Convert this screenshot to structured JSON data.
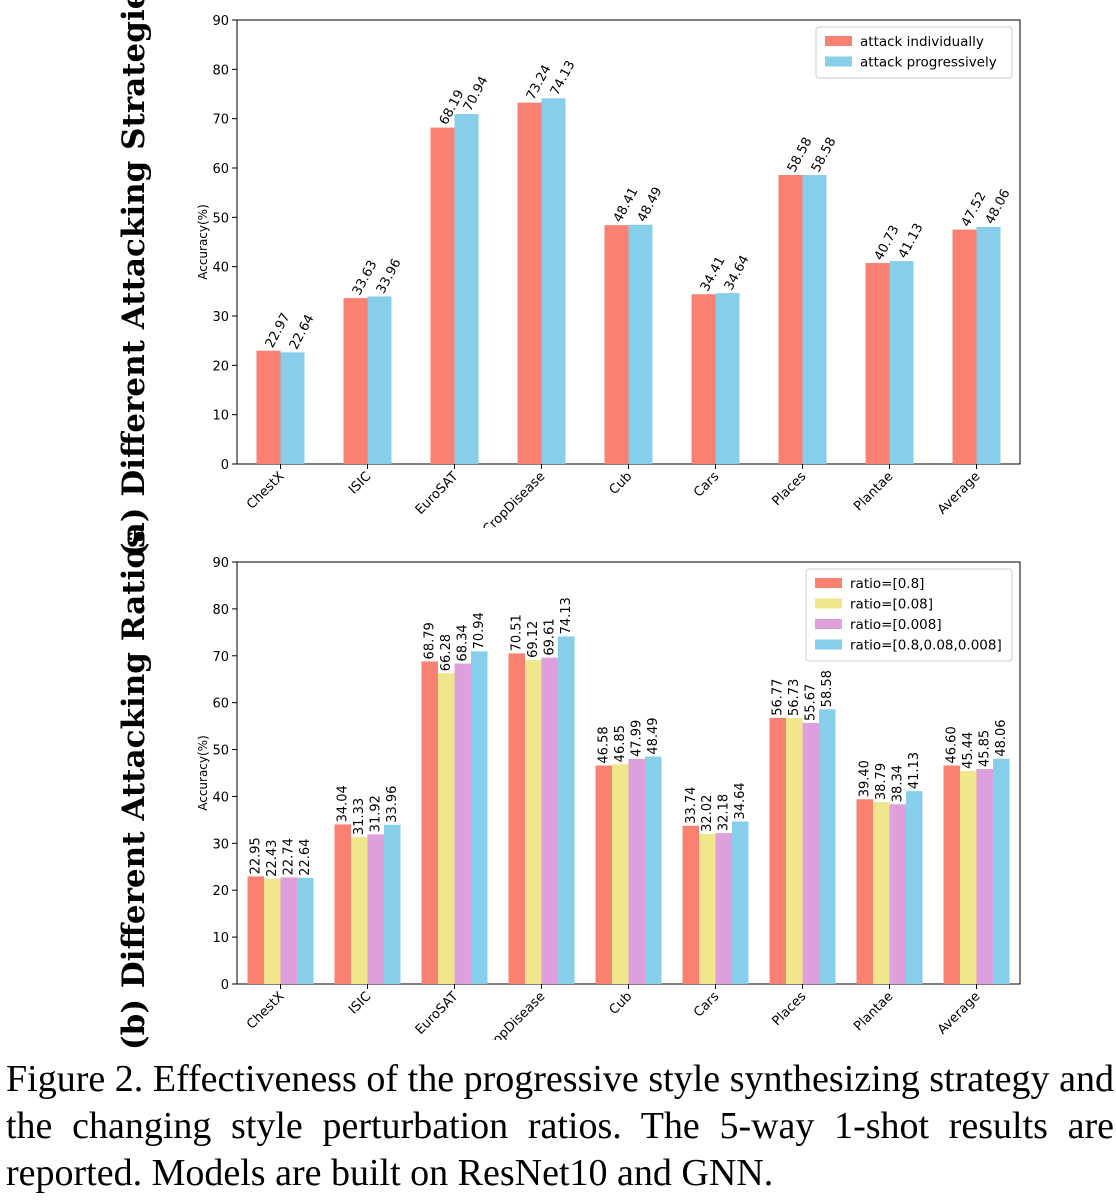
{
  "chart_data": [
    {
      "type": "bar",
      "panel_label": "(a) Different Attacking Strategies",
      "ylabel": "Accuracy(%)",
      "xlabel": "",
      "ylim": [
        0,
        90
      ],
      "yticks": [
        0,
        10,
        20,
        30,
        40,
        50,
        60,
        70,
        80,
        90
      ],
      "grid": false,
      "legend_position": "top-right",
      "categories": [
        "ChestX",
        "ISIC",
        "EuroSAT",
        "CropDisease",
        "Cub",
        "Cars",
        "Places",
        "Plantae",
        "Average"
      ],
      "series": [
        {
          "name": "attack individually",
          "color": "#fa8072",
          "values": [
            22.97,
            33.63,
            68.19,
            73.24,
            48.41,
            34.41,
            58.58,
            40.73,
            47.52
          ]
        },
        {
          "name": "attack progressively",
          "color": "#87ceeb",
          "values": [
            22.64,
            33.96,
            70.94,
            74.13,
            48.49,
            34.64,
            58.58,
            41.13,
            48.06
          ]
        }
      ]
    },
    {
      "type": "bar",
      "panel_label": "(b) Different Attacking Ratios",
      "ylabel": "Accuracy(%)",
      "xlabel": "",
      "ylim": [
        0,
        90
      ],
      "yticks": [
        0,
        10,
        20,
        30,
        40,
        50,
        60,
        70,
        80,
        90
      ],
      "grid": false,
      "legend_position": "top-right",
      "categories": [
        "ChestX",
        "ISIC",
        "EuroSAT",
        "CropDisease",
        "Cub",
        "Cars",
        "Places",
        "Plantae",
        "Average"
      ],
      "series": [
        {
          "name": "ratio=[0.8]",
          "color": "#fa8072",
          "values": [
            22.95,
            34.04,
            68.79,
            70.51,
            46.58,
            33.74,
            56.77,
            39.4,
            46.6
          ]
        },
        {
          "name": "ratio=[0.08]",
          "color": "#f0e68c",
          "values": [
            22.43,
            31.33,
            66.28,
            69.12,
            46.85,
            32.02,
            56.73,
            38.79,
            45.44
          ]
        },
        {
          "name": "ratio=[0.008]",
          "color": "#dda0dd",
          "values": [
            22.74,
            31.92,
            68.34,
            69.61,
            47.99,
            32.18,
            55.67,
            38.34,
            45.85
          ]
        },
        {
          "name": "ratio=[0.8,0.08,0.008]",
          "color": "#87ceeb",
          "values": [
            22.64,
            33.96,
            70.94,
            74.13,
            48.49,
            34.64,
            58.58,
            41.13,
            48.06
          ]
        }
      ]
    }
  ],
  "caption": "Figure 2. Effectiveness of the progressive style synthesizing strategy and the changing style perturbation ratios. The 5-way 1-shot results are reported. Models are built on ResNet10 and GNN."
}
